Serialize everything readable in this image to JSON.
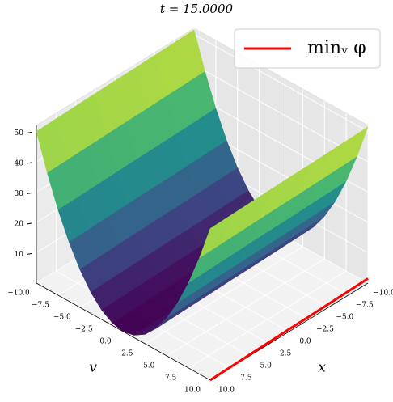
{
  "chart_data": {
    "type": "surface3d",
    "title": "t = 15.0000",
    "xlabel": "x",
    "ylabel": "v",
    "colormap": "viridis",
    "legend": "upper right",
    "x": [
      -10,
      -7.5,
      -5,
      -2.5,
      0,
      2.5,
      5,
      7.5,
      10
    ],
    "v": [
      -10,
      -8.75,
      -7.5,
      -6.25,
      -5,
      -3.75,
      -2.5,
      -1.25,
      0,
      1.25,
      2.5,
      3.75,
      5,
      6.25,
      7.5,
      8.75,
      10
    ],
    "z": [
      [
        51.5,
        39.8,
        29.6,
        21,
        14,
        8.5,
        4.6,
        2.3,
        1.5,
        2.3,
        4.6,
        8.5,
        14,
        21,
        29.6,
        39.8,
        51.5
      ],
      [
        51.3,
        39.6,
        29.4,
        20.8,
        13.8,
        8.3,
        4.4,
        2.1,
        1.3,
        2.1,
        4.4,
        8.3,
        13.8,
        20.8,
        29.4,
        39.6,
        51.3
      ],
      [
        51.1,
        39.4,
        29.2,
        20.6,
        13.6,
        8.1,
        4.2,
        1.9,
        1.1,
        1.9,
        4.2,
        8.1,
        13.6,
        20.6,
        29.2,
        39.4,
        51.1
      ],
      [
        50.9,
        39.2,
        29,
        20.4,
        13.4,
        7.9,
        4,
        1.7,
        0.9,
        1.7,
        4,
        7.9,
        13.4,
        20.4,
        29,
        39.2,
        50.9
      ],
      [
        50.8,
        39.1,
        28.9,
        20.3,
        13.3,
        7.8,
        3.9,
        1.6,
        0.8,
        1.6,
        3.9,
        7.8,
        13.3,
        20.3,
        28.9,
        39.1,
        50.8
      ],
      [
        50.6,
        38.9,
        28.7,
        20.1,
        13.1,
        7.6,
        3.7,
        1.4,
        0.6,
        1.4,
        3.7,
        7.6,
        13.1,
        20.1,
        28.7,
        38.9,
        50.6
      ],
      [
        50.4,
        38.7,
        28.5,
        19.9,
        12.9,
        7.4,
        3.5,
        1.2,
        0.4,
        1.2,
        3.5,
        7.4,
        12.9,
        19.9,
        28.5,
        38.7,
        50.4
      ],
      [
        50.2,
        38.5,
        28.3,
        19.7,
        12.7,
        7.2,
        3.3,
        1,
        0.2,
        1,
        3.3,
        7.2,
        12.7,
        19.7,
        28.3,
        38.5,
        50.2
      ],
      [
        50,
        38.3,
        28.1,
        19.5,
        12.5,
        7,
        3.1,
        0.8,
        0,
        0.8,
        3.1,
        7,
        12.5,
        19.5,
        28.1,
        38.3,
        50
      ]
    ],
    "series": [
      {
        "name": "minᵥ φ",
        "color": "#ff0000",
        "values": [
          1.5,
          1.3,
          1.1,
          0.9,
          0.8,
          0.6,
          0.4,
          0.2,
          0
        ]
      }
    ],
    "xlim": [
      -10,
      10
    ],
    "vlim": [
      -10,
      10
    ],
    "zlim": [
      0,
      52
    ],
    "xticks": [
      {
        "value": -10,
        "label": "−10.0"
      },
      {
        "value": -7.5,
        "label": "−7.5"
      },
      {
        "value": -5,
        "label": "−5.0"
      },
      {
        "value": -2.5,
        "label": "−2.5"
      },
      {
        "value": 0,
        "label": "0.0"
      },
      {
        "value": 2.5,
        "label": "2.5"
      },
      {
        "value": 5,
        "label": "5.0"
      },
      {
        "value": 7.5,
        "label": "7.5"
      },
      {
        "value": 10,
        "label": "10.0"
      }
    ],
    "vticks": [
      {
        "value": -10,
        "label": "−10.0"
      },
      {
        "value": -7.5,
        "label": "−7.5"
      },
      {
        "value": -5,
        "label": "−5.0"
      },
      {
        "value": -2.5,
        "label": "−2.5"
      },
      {
        "value": 0,
        "label": "0.0"
      },
      {
        "value": 2.5,
        "label": "2.5"
      },
      {
        "value": 5,
        "label": "5.0"
      },
      {
        "value": 7.5,
        "label": "7.5"
      },
      {
        "value": 10,
        "label": "10.0"
      }
    ],
    "zticks": [
      10,
      20,
      30,
      40,
      50
    ],
    "grid": true
  }
}
